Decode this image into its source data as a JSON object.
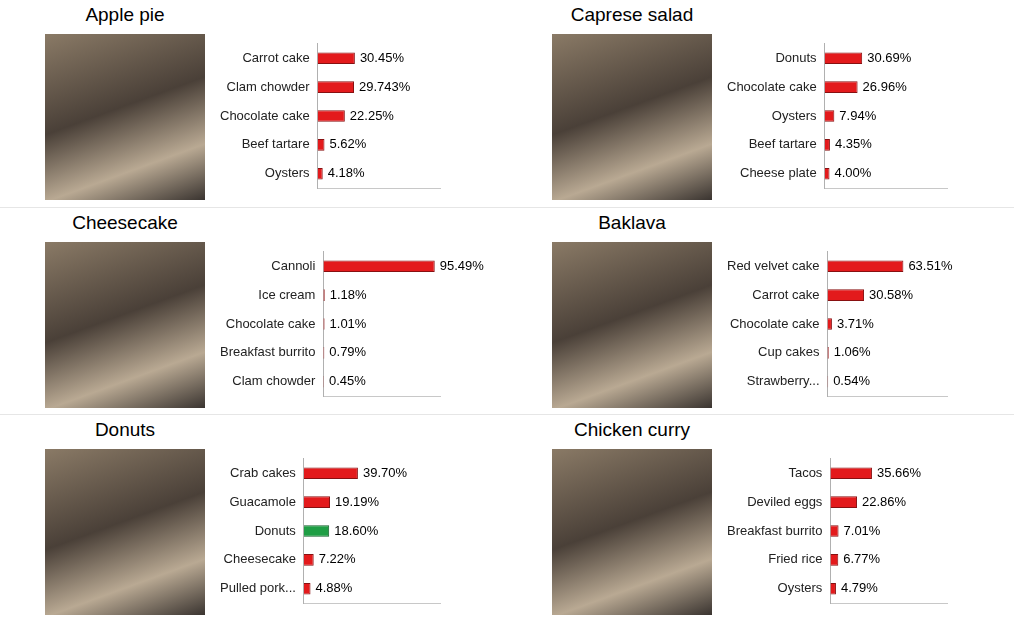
{
  "chart_data": [
    {
      "type": "bar",
      "title": "Apple pie",
      "orientation": "horizontal",
      "data_labels": true,
      "tick_labels": "y",
      "grid": false,
      "categories": [
        "Carrot cake",
        "Clam chowder",
        "Chocolate cake",
        "Beef tartare",
        "Oysters"
      ],
      "values": [
        30.45,
        29.743,
        22.25,
        5.62,
        4.18
      ],
      "value_labels": [
        "30.45%",
        "29.743%",
        "22.25%",
        "5.62%",
        "4.18%"
      ],
      "colors": [
        "#e31a1c",
        "#e31a1c",
        "#e31a1c",
        "#e31a1c",
        "#e31a1c"
      ],
      "xlim": [
        0,
        100
      ]
    },
    {
      "type": "bar",
      "title": "Caprese salad",
      "orientation": "horizontal",
      "data_labels": true,
      "tick_labels": "y",
      "grid": false,
      "categories": [
        "Donuts",
        "Chocolate cake",
        "Oysters",
        "Beef tartare",
        "Cheese plate"
      ],
      "values": [
        30.69,
        26.96,
        7.94,
        4.35,
        4.0
      ],
      "value_labels": [
        "30.69%",
        "26.96%",
        "7.94%",
        "4.35%",
        "4.00%"
      ],
      "colors": [
        "#e31a1c",
        "#e31a1c",
        "#e31a1c",
        "#e31a1c",
        "#e31a1c"
      ],
      "xlim": [
        0,
        100
      ]
    },
    {
      "type": "bar",
      "title": "Cheesecake",
      "orientation": "horizontal",
      "data_labels": true,
      "tick_labels": "y",
      "grid": false,
      "categories": [
        "Cannoli",
        "Ice cream",
        "Chocolate cake",
        "Breakfast burrito",
        "Clam chowder"
      ],
      "values": [
        95.49,
        1.18,
        1.01,
        0.79,
        0.45
      ],
      "value_labels": [
        "95.49%",
        "1.18%",
        "1.01%",
        "0.79%",
        "0.45%"
      ],
      "colors": [
        "#e31a1c",
        "#e31a1c",
        "#e31a1c",
        "#e31a1c",
        "#e31a1c"
      ],
      "xlim": [
        0,
        100
      ]
    },
    {
      "type": "bar",
      "title": "Baklava",
      "orientation": "horizontal",
      "data_labels": true,
      "tick_labels": "y",
      "grid": false,
      "categories": [
        "Red velvet cake",
        "Carrot cake",
        "Chocolate cake",
        "Cup cakes",
        "Strawberry..."
      ],
      "values": [
        63.51,
        30.58,
        3.71,
        1.06,
        0.54
      ],
      "value_labels": [
        "63.51%",
        "30.58%",
        "3.71%",
        "1.06%",
        "0.54%"
      ],
      "colors": [
        "#e31a1c",
        "#e31a1c",
        "#e31a1c",
        "#e31a1c",
        "#e31a1c"
      ],
      "xlim": [
        0,
        100
      ]
    },
    {
      "type": "bar",
      "title": "Donuts",
      "orientation": "horizontal",
      "data_labels": true,
      "tick_labels": "y",
      "grid": false,
      "categories": [
        "Crab cakes",
        "Guacamole",
        "Donuts",
        "Cheesecake",
        "Pulled pork..."
      ],
      "values": [
        39.7,
        19.19,
        18.6,
        7.22,
        4.88
      ],
      "value_labels": [
        "39.70%",
        "19.19%",
        "18.60%",
        "7.22%",
        "4.88%"
      ],
      "colors": [
        "#e31a1c",
        "#e31a1c",
        "#1f9e45",
        "#e31a1c",
        "#e31a1c"
      ],
      "xlim": [
        0,
        100
      ]
    },
    {
      "type": "bar",
      "title": "Chicken curry",
      "orientation": "horizontal",
      "data_labels": true,
      "tick_labels": "y",
      "grid": false,
      "categories": [
        "Tacos",
        "Deviled eggs",
        "Breakfast burrito",
        "Fried rice",
        "Oysters"
      ],
      "values": [
        35.66,
        22.86,
        7.01,
        6.77,
        4.79
      ],
      "value_labels": [
        "35.66%",
        "22.86%",
        "7.01%",
        "6.77%",
        "4.79%"
      ],
      "colors": [
        "#e31a1c",
        "#e31a1c",
        "#e31a1c",
        "#e31a1c",
        "#e31a1c"
      ],
      "xlim": [
        0,
        100
      ]
    }
  ]
}
